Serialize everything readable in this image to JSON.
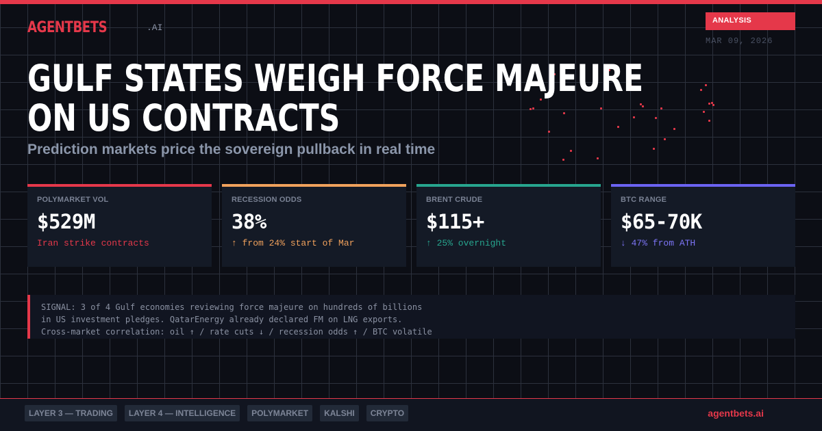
{
  "brand": {
    "logo": "AGENTBETS",
    "suffix": ".AI"
  },
  "header": {
    "tag": "ANALYSIS",
    "date": "MAR 09, 2026"
  },
  "headline": {
    "title_lines": [
      "GULF STATES WEIGH FORCE MAJEURE",
      "ON US CONTRACTS"
    ],
    "subtitle": "Prediction markets price the sovereign pullback in real time"
  },
  "cards": [
    {
      "label": "POLYMARKET VOL",
      "value": "$529M",
      "note": "Iran strike contracts",
      "accent": "#e5384a",
      "note_color": "#e5384a"
    },
    {
      "label": "RECESSION ODDS",
      "value": "38%",
      "note": "↑ from 24% start of Mar",
      "accent": "#f0a15c",
      "note_color": "#f0a15c"
    },
    {
      "label": "BRENT CRUDE",
      "value": "$115+",
      "note": "↑ 25% overnight",
      "accent": "#27a58e",
      "note_color": "#27a58e"
    },
    {
      "label": "BTC RANGE",
      "value": "$65-70K",
      "note": "↓ 47% from ATH",
      "accent": "#6b63f2",
      "note_color": "#7c74f5"
    }
  ],
  "signal": {
    "lines": [
      "SIGNAL: 3 of 4 Gulf economies reviewing force majeure on hundreds of billions",
      "in US investment pledges. QatarEnergy already declared FM on LNG exports.",
      "Cross-market correlation: oil ↑ / rate cuts ↓ / recession odds ↑ / BTC volatile"
    ]
  },
  "footer": {
    "tags": [
      "LAYER 3 — TRADING",
      "LAYER 4 — INTELLIGENCE",
      "POLYMARKET",
      "KALSHI",
      "CRYPTO"
    ],
    "url": "agentbets.ai"
  },
  "colors": {
    "accent": "#e5384a",
    "background": "#0c0e15",
    "card_bg": "#141a26"
  }
}
